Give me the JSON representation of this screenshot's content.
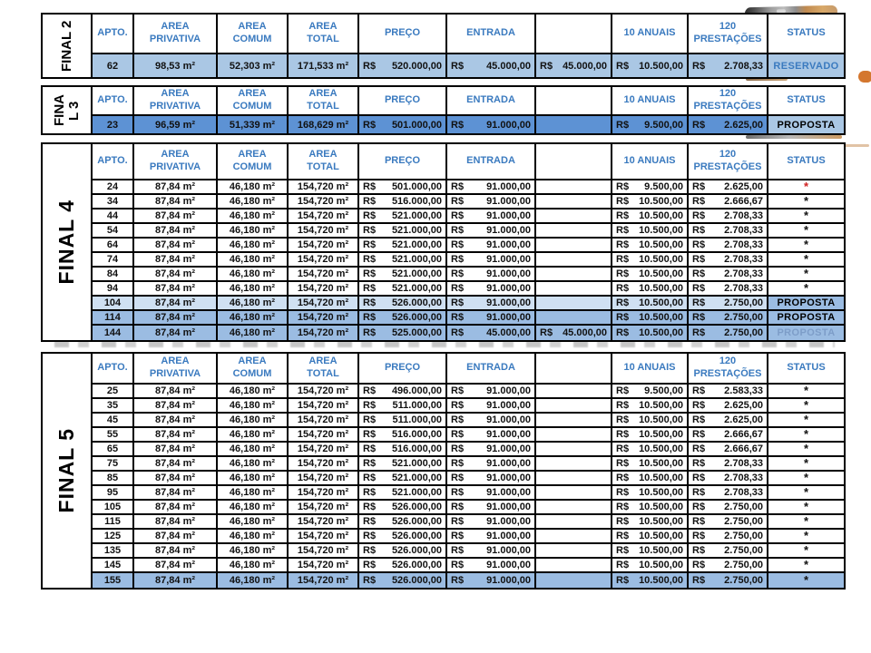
{
  "palette": {
    "header_text": "#3a7abf",
    "row_light_blue": "#aac7e4",
    "row_vivid_blue": "#5d92d4",
    "row_pale_blue": "#cfe0f2",
    "row_medium_blue": "#9bbce2",
    "status_reserved_text": "#3a7abf",
    "status_faded_text": "#7d9dc8",
    "star_red": "#cf2020",
    "border": "#000000"
  },
  "header": {
    "columns": [
      {
        "key": "apto",
        "label": "APTO."
      },
      {
        "key": "priv",
        "label": "AREA\nPRIVATIVA"
      },
      {
        "key": "comum",
        "label": "AREA\nCOMUM"
      },
      {
        "key": "total",
        "label": "AREA\nTOTAL"
      },
      {
        "key": "preco",
        "label": "PREÇO"
      },
      {
        "key": "entrada",
        "label": "ENTRADA"
      },
      {
        "key": "extra",
        "label": ""
      },
      {
        "key": "anuais",
        "label": "10 ANUAIS"
      },
      {
        "key": "prest",
        "label": "120\nPRESTAÇÕES"
      },
      {
        "key": "status",
        "label": "STATUS"
      }
    ]
  },
  "tables": [
    {
      "id": "final-2",
      "label": "FINAL 2",
      "rows": [
        {
          "apto": "62",
          "priv": "98,53 m²",
          "comum": "52,303 m²",
          "total": "171,533 m²",
          "preco": {
            "c": "R$",
            "v": "520.000,00"
          },
          "entrada": {
            "c": "R$",
            "v": "45.000,00"
          },
          "extra": {
            "c": "R$",
            "v": "45.000,00"
          },
          "anuais": {
            "c": "R$",
            "v": "10.500,00"
          },
          "prest": {
            "c": "R$",
            "v": "2.708,33"
          },
          "status": {
            "text": "RESERVADO",
            "style": "reservado"
          },
          "bg": "light"
        }
      ]
    },
    {
      "id": "final-3",
      "label": "FINAL 3",
      "rows": [
        {
          "apto": "23",
          "priv": "96,59 m²",
          "comum": "51,339 m²",
          "total": "168,629 m²",
          "preco": {
            "c": "R$",
            "v": "501.000,00"
          },
          "entrada": {
            "c": "R$",
            "v": "91.000,00"
          },
          "extra": null,
          "anuais": {
            "c": "R$",
            "v": "9.500,00"
          },
          "prest": {
            "c": "R$",
            "v": "2.625,00"
          },
          "status": {
            "text": "PROPOSTA",
            "style": "proposta",
            "bg": "light"
          },
          "bg": "vivid"
        }
      ]
    },
    {
      "id": "final-4",
      "label": "FINAL 4",
      "rows": [
        {
          "apto": "24",
          "priv": "87,84 m²",
          "comum": "46,180 m²",
          "total": "154,720 m²",
          "preco": {
            "c": "R$",
            "v": "501.000,00"
          },
          "entrada": {
            "c": "R$",
            "v": "91.000,00"
          },
          "extra": null,
          "anuais": {
            "c": "R$",
            "v": "9.500,00"
          },
          "prest": {
            "c": "R$",
            "v": "2.625,00"
          },
          "status": {
            "text": "*",
            "style": "star-red"
          },
          "bg": "white"
        },
        {
          "apto": "34",
          "priv": "87,84 m²",
          "comum": "46,180 m²",
          "total": "154,720 m²",
          "preco": {
            "c": "R$",
            "v": "516.000,00"
          },
          "entrada": {
            "c": "R$",
            "v": "91.000,00"
          },
          "extra": null,
          "anuais": {
            "c": "R$",
            "v": "10.500,00"
          },
          "prest": {
            "c": "R$",
            "v": "2.666,67"
          },
          "status": {
            "text": "*",
            "style": "star"
          },
          "bg": "white"
        },
        {
          "apto": "44",
          "priv": "87,84 m²",
          "comum": "46,180 m²",
          "total": "154,720 m²",
          "preco": {
            "c": "R$",
            "v": "521.000,00"
          },
          "entrada": {
            "c": "R$",
            "v": "91.000,00"
          },
          "extra": null,
          "anuais": {
            "c": "R$",
            "v": "10.500,00"
          },
          "prest": {
            "c": "R$",
            "v": "2.708,33"
          },
          "status": {
            "text": "*",
            "style": "star"
          },
          "bg": "white"
        },
        {
          "apto": "54",
          "priv": "87,84 m²",
          "comum": "46,180 m²",
          "total": "154,720 m²",
          "preco": {
            "c": "R$",
            "v": "521.000,00"
          },
          "entrada": {
            "c": "R$",
            "v": "91.000,00"
          },
          "extra": null,
          "anuais": {
            "c": "R$",
            "v": "10.500,00"
          },
          "prest": {
            "c": "R$",
            "v": "2.708,33"
          },
          "status": {
            "text": "*",
            "style": "star"
          },
          "bg": "white"
        },
        {
          "apto": "64",
          "priv": "87,84 m²",
          "comum": "46,180 m²",
          "total": "154,720 m²",
          "preco": {
            "c": "R$",
            "v": "521.000,00"
          },
          "entrada": {
            "c": "R$",
            "v": "91.000,00"
          },
          "extra": null,
          "anuais": {
            "c": "R$",
            "v": "10.500,00"
          },
          "prest": {
            "c": "R$",
            "v": "2.708,33"
          },
          "status": {
            "text": "*",
            "style": "star"
          },
          "bg": "white"
        },
        {
          "apto": "74",
          "priv": "87,84 m²",
          "comum": "46,180 m²",
          "total": "154,720 m²",
          "preco": {
            "c": "R$",
            "v": "521.000,00"
          },
          "entrada": {
            "c": "R$",
            "v": "91.000,00"
          },
          "extra": null,
          "anuais": {
            "c": "R$",
            "v": "10.500,00"
          },
          "prest": {
            "c": "R$",
            "v": "2.708,33"
          },
          "status": {
            "text": "*",
            "style": "star"
          },
          "bg": "white"
        },
        {
          "apto": "84",
          "priv": "87,84 m²",
          "comum": "46,180 m²",
          "total": "154,720 m²",
          "preco": {
            "c": "R$",
            "v": "521.000,00"
          },
          "entrada": {
            "c": "R$",
            "v": "91.000,00"
          },
          "extra": null,
          "anuais": {
            "c": "R$",
            "v": "10.500,00"
          },
          "prest": {
            "c": "R$",
            "v": "2.708,33"
          },
          "status": {
            "text": "*",
            "style": "star"
          },
          "bg": "white"
        },
        {
          "apto": "94",
          "priv": "87,84 m²",
          "comum": "46,180 m²",
          "total": "154,720 m²",
          "preco": {
            "c": "R$",
            "v": "521.000,00"
          },
          "entrada": {
            "c": "R$",
            "v": "91.000,00"
          },
          "extra": null,
          "anuais": {
            "c": "R$",
            "v": "10.500,00"
          },
          "prest": {
            "c": "R$",
            "v": "2.708,33"
          },
          "status": {
            "text": "*",
            "style": "star"
          },
          "bg": "white"
        },
        {
          "apto": "104",
          "priv": "87,84 m²",
          "comum": "46,180 m²",
          "total": "154,720 m²",
          "preco": {
            "c": "R$",
            "v": "526.000,00"
          },
          "entrada": {
            "c": "R$",
            "v": "91.000,00"
          },
          "extra": null,
          "anuais": {
            "c": "R$",
            "v": "10.500,00"
          },
          "prest": {
            "c": "R$",
            "v": "2.750,00"
          },
          "status": {
            "text": "PROPOSTA",
            "style": "proposta",
            "bg": "medium"
          },
          "bg": "pale"
        },
        {
          "apto": "114",
          "priv": "87,84 m²",
          "comum": "46,180 m²",
          "total": "154,720 m²",
          "preco": {
            "c": "R$",
            "v": "526.000,00"
          },
          "entrada": {
            "c": "R$",
            "v": "91.000,00"
          },
          "extra": null,
          "anuais": {
            "c": "R$",
            "v": "10.500,00"
          },
          "prest": {
            "c": "R$",
            "v": "2.750,00"
          },
          "status": {
            "text": "PROPOSTA",
            "style": "proposta",
            "bg": "medium"
          },
          "bg": "medium"
        },
        {
          "apto": "144",
          "priv": "87,84 m²",
          "comum": "46,180 m²",
          "total": "154,720 m²",
          "preco": {
            "c": "R$",
            "v": "525.000,00"
          },
          "entrada": {
            "c": "R$",
            "v": "45.000,00"
          },
          "extra": {
            "c": "R$",
            "v": "45.000,00"
          },
          "anuais": {
            "c": "R$",
            "v": "10.500,00"
          },
          "prest": {
            "c": "R$",
            "v": "2.750,00"
          },
          "status": {
            "text": "PROPOSTA",
            "style": "proposta-faded",
            "bg": "medium"
          },
          "bg": "medium"
        }
      ]
    },
    {
      "id": "final-5",
      "label": "FINAL 5",
      "rows": [
        {
          "apto": "25",
          "priv": "87,84 m²",
          "comum": "46,180 m²",
          "total": "154,720 m²",
          "preco": {
            "c": "R$",
            "v": "496.000,00"
          },
          "entrada": {
            "c": "R$",
            "v": "91.000,00"
          },
          "extra": null,
          "anuais": {
            "c": "R$",
            "v": "9.500,00"
          },
          "prest": {
            "c": "R$",
            "v": "2.583,33"
          },
          "status": {
            "text": "*",
            "style": "star"
          },
          "bg": "white"
        },
        {
          "apto": "35",
          "priv": "87,84 m²",
          "comum": "46,180 m²",
          "total": "154,720 m²",
          "preco": {
            "c": "R$",
            "v": "511.000,00"
          },
          "entrada": {
            "c": "R$",
            "v": "91.000,00"
          },
          "extra": null,
          "anuais": {
            "c": "R$",
            "v": "10.500,00"
          },
          "prest": {
            "c": "R$",
            "v": "2.625,00"
          },
          "status": {
            "text": "*",
            "style": "star"
          },
          "bg": "white"
        },
        {
          "apto": "45",
          "priv": "87,84 m²",
          "comum": "46,180 m²",
          "total": "154,720 m²",
          "preco": {
            "c": "R$",
            "v": "511.000,00"
          },
          "entrada": {
            "c": "R$",
            "v": "91.000,00"
          },
          "extra": null,
          "anuais": {
            "c": "R$",
            "v": "10.500,00"
          },
          "prest": {
            "c": "R$",
            "v": "2.625,00"
          },
          "status": {
            "text": "*",
            "style": "star"
          },
          "bg": "white"
        },
        {
          "apto": "55",
          "priv": "87,84 m²",
          "comum": "46,180 m²",
          "total": "154,720 m²",
          "preco": {
            "c": "R$",
            "v": "516.000,00"
          },
          "entrada": {
            "c": "R$",
            "v": "91.000,00"
          },
          "extra": null,
          "anuais": {
            "c": "R$",
            "v": "10.500,00"
          },
          "prest": {
            "c": "R$",
            "v": "2.666,67"
          },
          "status": {
            "text": "*",
            "style": "star"
          },
          "bg": "white"
        },
        {
          "apto": "65",
          "priv": "87,84 m²",
          "comum": "46,180 m²",
          "total": "154,720 m²",
          "preco": {
            "c": "R$",
            "v": "516.000,00"
          },
          "entrada": {
            "c": "R$",
            "v": "91.000,00"
          },
          "extra": null,
          "anuais": {
            "c": "R$",
            "v": "10.500,00"
          },
          "prest": {
            "c": "R$",
            "v": "2.666,67"
          },
          "status": {
            "text": "*",
            "style": "star"
          },
          "bg": "white"
        },
        {
          "apto": "75",
          "priv": "87,84 m²",
          "comum": "46,180 m²",
          "total": "154,720 m²",
          "preco": {
            "c": "R$",
            "v": "521.000,00"
          },
          "entrada": {
            "c": "R$",
            "v": "91.000,00"
          },
          "extra": null,
          "anuais": {
            "c": "R$",
            "v": "10.500,00"
          },
          "prest": {
            "c": "R$",
            "v": "2.708,33"
          },
          "status": {
            "text": "*",
            "style": "star"
          },
          "bg": "white"
        },
        {
          "apto": "85",
          "priv": "87,84 m²",
          "comum": "46,180 m²",
          "total": "154,720 m²",
          "preco": {
            "c": "R$",
            "v": "521.000,00"
          },
          "entrada": {
            "c": "R$",
            "v": "91.000,00"
          },
          "extra": null,
          "anuais": {
            "c": "R$",
            "v": "10.500,00"
          },
          "prest": {
            "c": "R$",
            "v": "2.708,33"
          },
          "status": {
            "text": "*",
            "style": "star"
          },
          "bg": "white"
        },
        {
          "apto": "95",
          "priv": "87,84 m²",
          "comum": "46,180 m²",
          "total": "154,720 m²",
          "preco": {
            "c": "R$",
            "v": "521.000,00"
          },
          "entrada": {
            "c": "R$",
            "v": "91.000,00"
          },
          "extra": null,
          "anuais": {
            "c": "R$",
            "v": "10.500,00"
          },
          "prest": {
            "c": "R$",
            "v": "2.708,33"
          },
          "status": {
            "text": "*",
            "style": "star"
          },
          "bg": "white"
        },
        {
          "apto": "105",
          "priv": "87,84 m²",
          "comum": "46,180 m²",
          "total": "154,720 m²",
          "preco": {
            "c": "R$",
            "v": "526.000,00"
          },
          "entrada": {
            "c": "R$",
            "v": "91.000,00"
          },
          "extra": null,
          "anuais": {
            "c": "R$",
            "v": "10.500,00"
          },
          "prest": {
            "c": "R$",
            "v": "2.750,00"
          },
          "status": {
            "text": "*",
            "style": "star"
          },
          "bg": "white"
        },
        {
          "apto": "115",
          "priv": "87,84 m²",
          "comum": "46,180 m²",
          "total": "154,720 m²",
          "preco": {
            "c": "R$",
            "v": "526.000,00"
          },
          "entrada": {
            "c": "R$",
            "v": "91.000,00"
          },
          "extra": null,
          "anuais": {
            "c": "R$",
            "v": "10.500,00"
          },
          "prest": {
            "c": "R$",
            "v": "2.750,00"
          },
          "status": {
            "text": "*",
            "style": "star"
          },
          "bg": "white"
        },
        {
          "apto": "125",
          "priv": "87,84 m²",
          "comum": "46,180 m²",
          "total": "154,720 m²",
          "preco": {
            "c": "R$",
            "v": "526.000,00"
          },
          "entrada": {
            "c": "R$",
            "v": "91.000,00"
          },
          "extra": null,
          "anuais": {
            "c": "R$",
            "v": "10.500,00"
          },
          "prest": {
            "c": "R$",
            "v": "2.750,00"
          },
          "status": {
            "text": "*",
            "style": "star"
          },
          "bg": "white"
        },
        {
          "apto": "135",
          "priv": "87,84 m²",
          "comum": "46,180 m²",
          "total": "154,720 m²",
          "preco": {
            "c": "R$",
            "v": "526.000,00"
          },
          "entrada": {
            "c": "R$",
            "v": "91.000,00"
          },
          "extra": null,
          "anuais": {
            "c": "R$",
            "v": "10.500,00"
          },
          "prest": {
            "c": "R$",
            "v": "2.750,00"
          },
          "status": {
            "text": "*",
            "style": "star"
          },
          "bg": "white"
        },
        {
          "apto": "145",
          "priv": "87,84 m²",
          "comum": "46,180 m²",
          "total": "154,720 m²",
          "preco": {
            "c": "R$",
            "v": "526.000,00"
          },
          "entrada": {
            "c": "R$",
            "v": "91.000,00"
          },
          "extra": null,
          "anuais": {
            "c": "R$",
            "v": "10.500,00"
          },
          "prest": {
            "c": "R$",
            "v": "2.750,00"
          },
          "status": {
            "text": "*",
            "style": "star"
          },
          "bg": "white"
        },
        {
          "apto": "155",
          "priv": "87,84 m²",
          "comum": "46,180 m²",
          "total": "154,720 m²",
          "preco": {
            "c": "R$",
            "v": "526.000,00"
          },
          "entrada": {
            "c": "R$",
            "v": "91.000,00"
          },
          "extra": null,
          "anuais": {
            "c": "R$",
            "v": "10.500,00"
          },
          "prest": {
            "c": "R$",
            "v": "2.750,00"
          },
          "status": {
            "text": "*",
            "style": "star"
          },
          "bg": "medium"
        }
      ]
    }
  ]
}
